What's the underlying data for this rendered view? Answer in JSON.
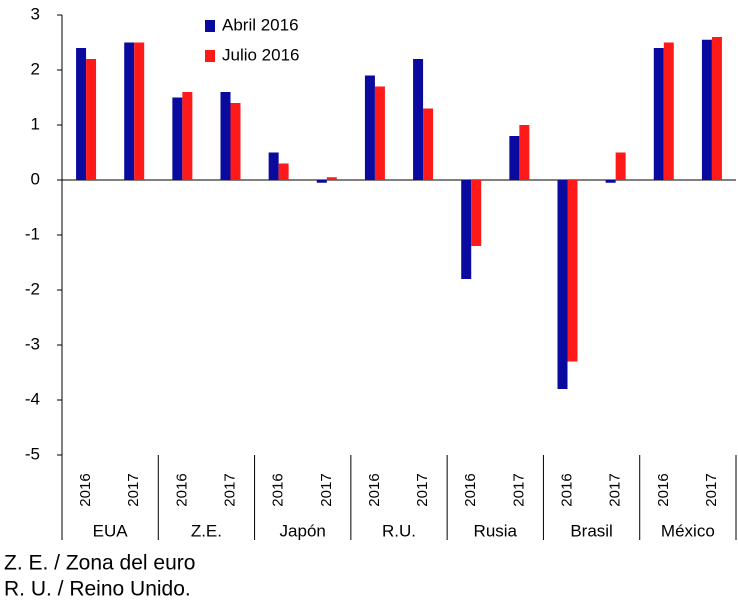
{
  "chart_data": {
    "type": "bar",
    "groups": [
      "EUA",
      "Z.E.",
      "Japón",
      "R.U.",
      "Rusia",
      "Brasil",
      "México"
    ],
    "categories": [
      "2016",
      "2017",
      "2016",
      "2017",
      "2016",
      "2017",
      "2016",
      "2017",
      "2016",
      "2017",
      "2016",
      "2017",
      "2016",
      "2017"
    ],
    "series": [
      {
        "name": "Abril 2016",
        "color": "#0a0a9e",
        "values": [
          2.4,
          2.5,
          1.5,
          1.6,
          0.5,
          -0.05,
          1.9,
          2.2,
          -1.8,
          0.8,
          -3.8,
          -0.05,
          2.4,
          2.55
        ]
      },
      {
        "name": "Julio 2016",
        "color": "#ff1a1a",
        "values": [
          2.2,
          2.5,
          1.6,
          1.4,
          0.3,
          0.05,
          1.7,
          1.3,
          -1.2,
          1.0,
          -3.3,
          0.5,
          2.5,
          2.6
        ]
      }
    ],
    "ylim": [
      -5,
      3
    ],
    "yticks": [
      3,
      2,
      1,
      0,
      -1,
      -2,
      -3,
      -4,
      -5
    ],
    "legend": "top-left",
    "notes": [
      "Z. E. / Zona del euro",
      "R. U. / Reino Unido."
    ]
  }
}
